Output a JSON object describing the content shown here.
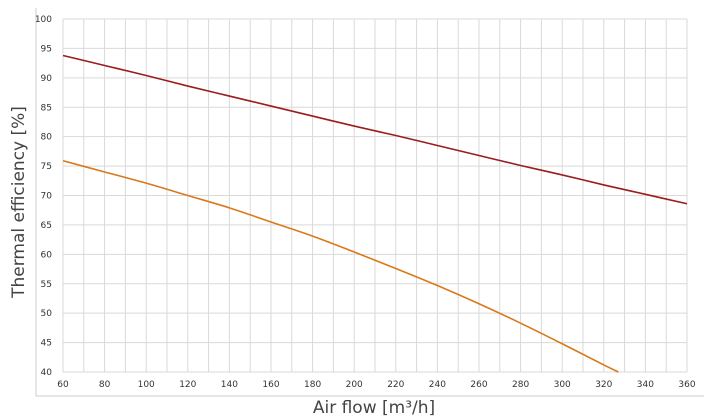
{
  "chart_data": {
    "type": "line",
    "title": "",
    "xlabel": "Air flow [m³/h]",
    "ylabel": "Thermal efficiency [%]",
    "xlim": [
      60,
      360
    ],
    "ylim": [
      40,
      100
    ],
    "xticks": [
      60,
      80,
      100,
      120,
      140,
      160,
      180,
      200,
      220,
      240,
      260,
      280,
      300,
      320,
      340,
      360
    ],
    "yticks": [
      40,
      45,
      50,
      55,
      60,
      65,
      70,
      75,
      80,
      85,
      90,
      95,
      100
    ],
    "grid": true,
    "series": [
      {
        "color": "#9b1c1c",
        "x": [
          60,
          80,
          100,
          120,
          140,
          160,
          180,
          200,
          220,
          240,
          260,
          280,
          300,
          320,
          340,
          360
        ],
        "y": [
          93.8,
          92.1,
          90.4,
          88.6,
          86.9,
          85.2,
          83.5,
          81.8,
          80.2,
          78.5,
          76.8,
          75.1,
          73.5,
          71.8,
          70.2,
          68.6
        ]
      },
      {
        "color": "#d9791a",
        "x": [
          60,
          80,
          100,
          120,
          140,
          160,
          180,
          200,
          220,
          240,
          260,
          280,
          300,
          320,
          327
        ],
        "y": [
          75.9,
          74.0,
          72.1,
          70.0,
          67.9,
          65.5,
          63.1,
          60.4,
          57.6,
          54.7,
          51.6,
          48.3,
          44.8,
          41.2,
          39.9
        ]
      }
    ]
  }
}
